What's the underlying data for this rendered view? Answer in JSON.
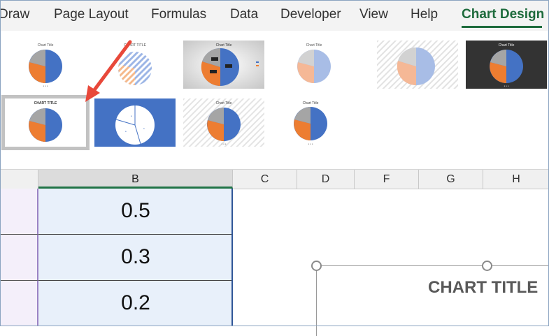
{
  "ribbon": {
    "tabs": [
      {
        "label": "Draw"
      },
      {
        "label": "Page Layout"
      },
      {
        "label": "Formulas"
      },
      {
        "label": "Data"
      },
      {
        "label": "Developer"
      },
      {
        "label": "View"
      },
      {
        "label": "Help"
      },
      {
        "label": "Chart Design"
      }
    ],
    "active_tab": "Chart Design"
  },
  "chart_styles": {
    "thumb_titles": [
      "Chart Title",
      "CHART TITLE",
      "Chart Title",
      "Chart Title",
      "",
      "Chart Title",
      "CHART TITLE",
      "",
      "Chart Title",
      "Chart Title"
    ],
    "selected_index": 6
  },
  "sheet": {
    "columns": [
      "B",
      "C",
      "D",
      "F",
      "G",
      "H"
    ],
    "selected_column": "B",
    "values": [
      "0.5",
      "0.3",
      "0.2"
    ]
  },
  "chart": {
    "title": "CHART TITLE",
    "colors": {
      "blue": "#4472c4",
      "orange": "#ed7d31",
      "gray": "#a5a5a5"
    }
  },
  "annotation": {
    "arrow_color": "#e8483a"
  }
}
